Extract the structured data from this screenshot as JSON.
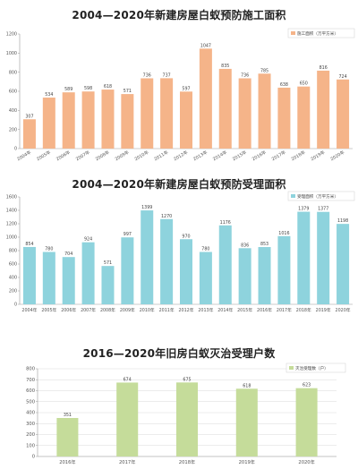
{
  "chart_data": [
    {
      "type": "bar",
      "title": "2004—2020年新建房屋白蚁预防施工面积",
      "legend": "施工面积（万平方米）",
      "legend_position": "top-right",
      "color": "#F5B489",
      "categories": [
        "2004年",
        "2005年",
        "2006年",
        "2007年",
        "2008年",
        "2009年",
        "2010年",
        "2011年",
        "2012年",
        "2013年",
        "2014年",
        "2015年",
        "2016年",
        "2017年",
        "2018年",
        "2019年",
        "2020年"
      ],
      "values": [
        307,
        534,
        589,
        598,
        618,
        571,
        736,
        737,
        597,
        1047,
        835,
        736,
        785,
        638,
        650,
        816,
        724
      ],
      "ylim": [
        0,
        1200
      ],
      "yticks": [
        0,
        200,
        400,
        600,
        800,
        1000,
        1200
      ],
      "grid": false
    },
    {
      "type": "bar",
      "title": "2004—2020年新建房屋白蚁预防受理面积",
      "legend": "受理面积（万平方米）",
      "legend_position": "top-right",
      "color": "#8ED3DD",
      "categories": [
        "2004年",
        "2005年",
        "2006年",
        "2007年",
        "2008年",
        "2009年",
        "2010年",
        "2011年",
        "2012年",
        "2013年",
        "2014年",
        "2015年",
        "2016年",
        "2017年",
        "2018年",
        "2019年",
        "2020年"
      ],
      "values": [
        854,
        780,
        704,
        924,
        571,
        997,
        1399,
        1270,
        970,
        780,
        1176,
        836,
        853,
        1016,
        1379,
        1377,
        1198
      ],
      "ylim": [
        0,
        1600
      ],
      "yticks": [
        0,
        200,
        400,
        600,
        800,
        1000,
        1200,
        1400,
        1600
      ],
      "grid": false
    },
    {
      "type": "bar",
      "title": "2016—2020年旧房白蚁灭治受理户数",
      "legend": "灭治受理数（户）",
      "legend_position": "top-right",
      "color": "#C5DC9A",
      "categories": [
        "2016年",
        "2017年",
        "2018年",
        "2019年",
        "2020年"
      ],
      "values": [
        351,
        674,
        675,
        618,
        623
      ],
      "ylim": [
        0,
        800
      ],
      "yticks": [
        0,
        100,
        200,
        300,
        400,
        500,
        600,
        700,
        800
      ],
      "grid": true
    }
  ]
}
